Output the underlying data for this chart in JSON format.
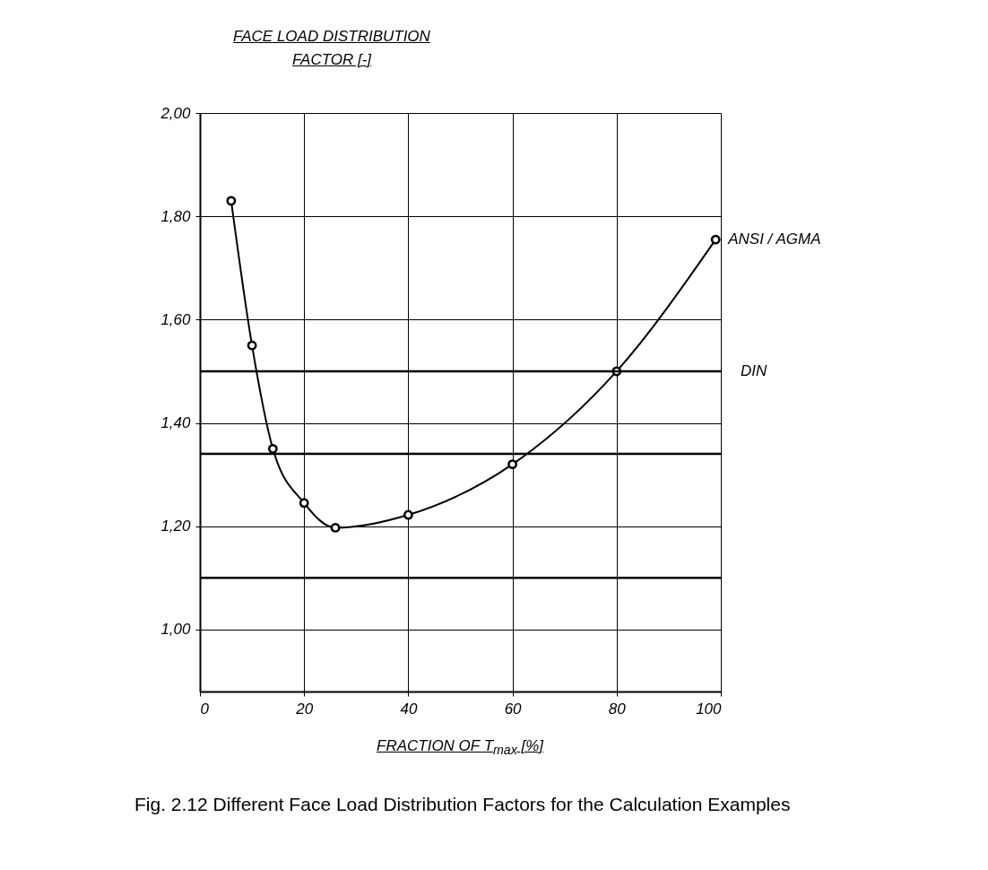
{
  "chart_data": {
    "type": "line",
    "ylabel": "FACE LOAD DISTRIBUTION FACTOR [-]",
    "xlabel": "FRACTION OF T$_{max}$ [%]",
    "annotations": [
      "Fig. 2.12 Different Face Load Distribution Factors for the Calculation Examples"
    ],
    "x": [
      6,
      10,
      14,
      20,
      26,
      40,
      60,
      80,
      99
    ],
    "series": [
      {
        "name": "ANSI / AGMA",
        "color": "#000000",
        "values": [
          1.83,
          1.55,
          1.35,
          1.245,
          1.197,
          1.222,
          1.32,
          1.5,
          1.755
        ]
      }
    ],
    "xlim": [
      0,
      100
    ],
    "xticks": [
      0,
      20,
      40,
      60,
      80,
      100
    ],
    "ylim": [
      0.88,
      2.0
    ],
    "yticks": [
      {
        "value": 1.0,
        "label": "1,00"
      },
      {
        "value": 1.2,
        "label": "1,20"
      },
      {
        "value": 1.4,
        "label": "1,40"
      },
      {
        "value": 1.6,
        "label": "1,60"
      },
      {
        "value": 1.8,
        "label": "1,80"
      },
      {
        "value": 2.0,
        "label": "2,00"
      }
    ],
    "ref_lines": [
      {
        "axis": "y",
        "value": 1.5,
        "label": "DIN",
        "color": "#000000"
      },
      {
        "axis": "y",
        "value": 1.34,
        "label": null,
        "color": "#000000"
      },
      {
        "axis": "y",
        "value": 1.1,
        "label": null,
        "color": "#000000"
      }
    ],
    "grid": true,
    "legend": false,
    "marker": "circle",
    "line_style": "solid"
  }
}
